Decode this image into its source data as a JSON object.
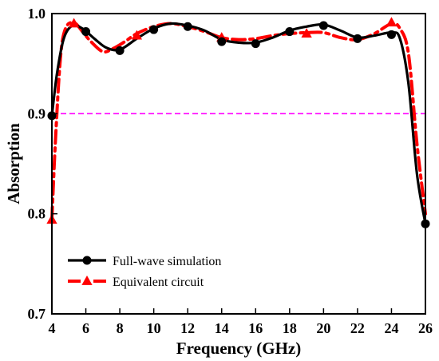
{
  "chart_data": {
    "type": "line",
    "title": "",
    "xlabel": "Frequency (GHz)",
    "ylabel": "Absorption",
    "xlim": [
      4,
      26
    ],
    "ylim": [
      0.7,
      1.0
    ],
    "xticks": [
      4,
      6,
      8,
      10,
      12,
      14,
      16,
      18,
      20,
      22,
      24,
      26
    ],
    "yticks": [
      0.7,
      0.8,
      0.9,
      1.0
    ],
    "xtick_labels": [
      "4",
      "6",
      "8",
      "10",
      "12",
      "14",
      "16",
      "18",
      "20",
      "22",
      "24",
      "26"
    ],
    "ytick_labels": [
      "0.7",
      "0.8",
      "0.9",
      "1.0"
    ],
    "grid": false,
    "legend_position": "bottom-left",
    "reference_line": {
      "y": 0.9,
      "color": "#ff00ff",
      "style": "dashed"
    },
    "series": [
      {
        "name": "Full-wave simulation",
        "color": "#000000",
        "style": "solid",
        "marker": "circle",
        "x": [
          4,
          4.3,
          4.7,
          5.2,
          5.8,
          6.5,
          7.2,
          8,
          9,
          10,
          11,
          12,
          13,
          14,
          15,
          16,
          17,
          18,
          19,
          20,
          21,
          22,
          23,
          24,
          24.5,
          25,
          25.5,
          26
        ],
        "y": [
          0.898,
          0.94,
          0.975,
          0.988,
          0.985,
          0.975,
          0.966,
          0.964,
          0.975,
          0.985,
          0.99,
          0.988,
          0.983,
          0.974,
          0.971,
          0.971,
          0.976,
          0.983,
          0.987,
          0.989,
          0.983,
          0.976,
          0.978,
          0.981,
          0.975,
          0.93,
          0.84,
          0.79
        ],
        "marker_x": [
          4,
          6,
          8,
          10,
          12,
          14,
          16,
          18,
          20,
          22,
          24,
          26
        ],
        "marker_y": [
          0.898,
          0.982,
          0.963,
          0.984,
          0.987,
          0.972,
          0.97,
          0.982,
          0.988,
          0.975,
          0.979,
          0.79
        ]
      },
      {
        "name": "Equivalent circuit",
        "color": "#ff0000",
        "style": "dashdot",
        "marker": "triangle",
        "x": [
          4,
          4.2,
          4.5,
          4.8,
          5.3,
          5.8,
          6.3,
          7,
          7.6,
          8.3,
          9,
          10,
          11,
          12,
          13,
          14,
          15,
          16,
          17,
          18,
          19,
          20,
          21,
          22,
          23,
          24,
          24.5,
          25,
          25.5,
          26
        ],
        "y": [
          0.794,
          0.87,
          0.955,
          0.985,
          0.991,
          0.982,
          0.972,
          0.962,
          0.965,
          0.972,
          0.98,
          0.987,
          0.99,
          0.987,
          0.982,
          0.976,
          0.974,
          0.975,
          0.978,
          0.98,
          0.981,
          0.981,
          0.976,
          0.974,
          0.98,
          0.99,
          0.985,
          0.96,
          0.87,
          0.8
        ],
        "marker_x": [
          4,
          5.3,
          9,
          14,
          19,
          24
        ],
        "marker_y": [
          0.794,
          0.99,
          0.978,
          0.976,
          0.98,
          0.991
        ]
      }
    ]
  }
}
